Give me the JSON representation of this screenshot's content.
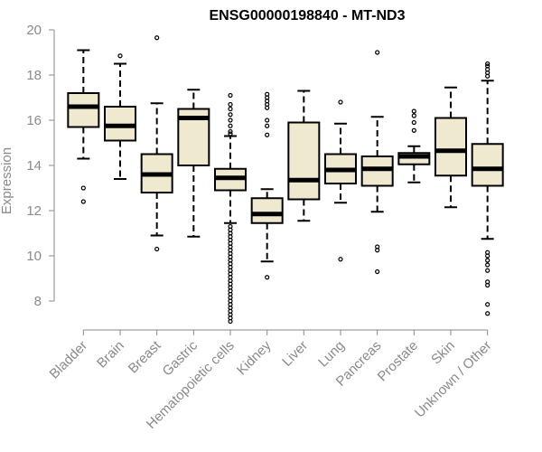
{
  "chart_data": {
    "type": "box",
    "title": "ENSG00000198840 - MT-ND3",
    "xlabel": "",
    "ylabel": "Expression",
    "ylim": [
      7,
      20
    ],
    "yticks": [
      8,
      10,
      12,
      14,
      16,
      18,
      20
    ],
    "colors": {
      "box_fill": "#efe9d0",
      "box_stroke": "#000000",
      "median": "#000000",
      "axis": "#8a8a8a"
    },
    "categories": [
      "Bladder",
      "Brain",
      "Breast",
      "Gastric",
      "Hematopoietic cells",
      "Kidney",
      "Liver",
      "Lung",
      "Pancreas",
      "Prostate",
      "Skin",
      "Unknown / Other"
    ],
    "boxes": [
      {
        "name": "Bladder",
        "whisker_low": 14.3,
        "q1": 15.7,
        "median": 16.6,
        "q3": 17.2,
        "whisker_high": 19.1,
        "outliers": [
          13.0,
          12.4
        ]
      },
      {
        "name": "Brain",
        "whisker_low": 13.4,
        "q1": 15.1,
        "median": 15.75,
        "q3": 16.6,
        "whisker_high": 18.5,
        "outliers": [
          18.85
        ]
      },
      {
        "name": "Breast",
        "whisker_low": 10.9,
        "q1": 12.8,
        "median": 13.6,
        "q3": 14.5,
        "whisker_high": 16.75,
        "outliers": [
          19.65,
          10.3
        ]
      },
      {
        "name": "Gastric",
        "whisker_low": 10.85,
        "q1": 14.0,
        "median": 16.1,
        "q3": 16.5,
        "whisker_high": 17.35,
        "outliers": []
      },
      {
        "name": "Hematopoietic cells",
        "whisker_low": 11.45,
        "q1": 12.9,
        "median": 13.45,
        "q3": 13.85,
        "whisker_high": 15.3,
        "outliers": [
          17.1,
          16.7,
          16.5,
          16.25,
          16.0,
          15.75,
          15.5,
          15.4,
          11.3,
          11.15,
          11.0,
          10.85,
          10.7,
          10.55,
          10.4,
          10.25,
          10.1,
          9.95,
          9.8,
          9.65,
          9.5,
          9.35,
          9.2,
          9.05,
          8.9,
          8.75,
          8.6,
          8.45,
          8.3,
          8.15,
          8.0,
          7.85,
          7.7,
          7.55,
          7.4,
          7.25,
          7.1
        ]
      },
      {
        "name": "Kidney",
        "whisker_low": 9.75,
        "q1": 11.45,
        "median": 11.85,
        "q3": 12.55,
        "whisker_high": 12.95,
        "outliers": [
          17.15,
          17.0,
          16.85,
          16.7,
          16.55,
          16.0,
          15.75,
          15.35,
          9.05
        ]
      },
      {
        "name": "Liver",
        "whisker_low": 11.55,
        "q1": 12.5,
        "median": 13.35,
        "q3": 15.9,
        "whisker_high": 17.3,
        "outliers": []
      },
      {
        "name": "Lung",
        "whisker_low": 12.35,
        "q1": 13.2,
        "median": 13.8,
        "q3": 14.5,
        "whisker_high": 15.85,
        "outliers": [
          16.8,
          9.85
        ]
      },
      {
        "name": "Pancreas",
        "whisker_low": 11.95,
        "q1": 13.1,
        "median": 13.85,
        "q3": 14.4,
        "whisker_high": 16.15,
        "outliers": [
          19.0,
          10.4,
          10.25,
          9.3
        ]
      },
      {
        "name": "Prostate",
        "whisker_low": 13.25,
        "q1": 14.05,
        "median": 14.4,
        "q3": 14.55,
        "whisker_high": 14.85,
        "outliers": [
          16.4,
          16.2,
          15.9,
          15.55
        ]
      },
      {
        "name": "Skin",
        "whisker_low": 12.15,
        "q1": 13.55,
        "median": 14.65,
        "q3": 16.1,
        "whisker_high": 17.45,
        "outliers": []
      },
      {
        "name": "Unknown / Other",
        "whisker_low": 10.75,
        "q1": 13.1,
        "median": 13.85,
        "q3": 14.95,
        "whisker_high": 17.75,
        "outliers": [
          18.5,
          18.4,
          18.25,
          18.1,
          17.95,
          10.15,
          10.0,
          9.8,
          9.6,
          9.35,
          8.85,
          8.7,
          7.85,
          7.45
        ]
      }
    ]
  }
}
